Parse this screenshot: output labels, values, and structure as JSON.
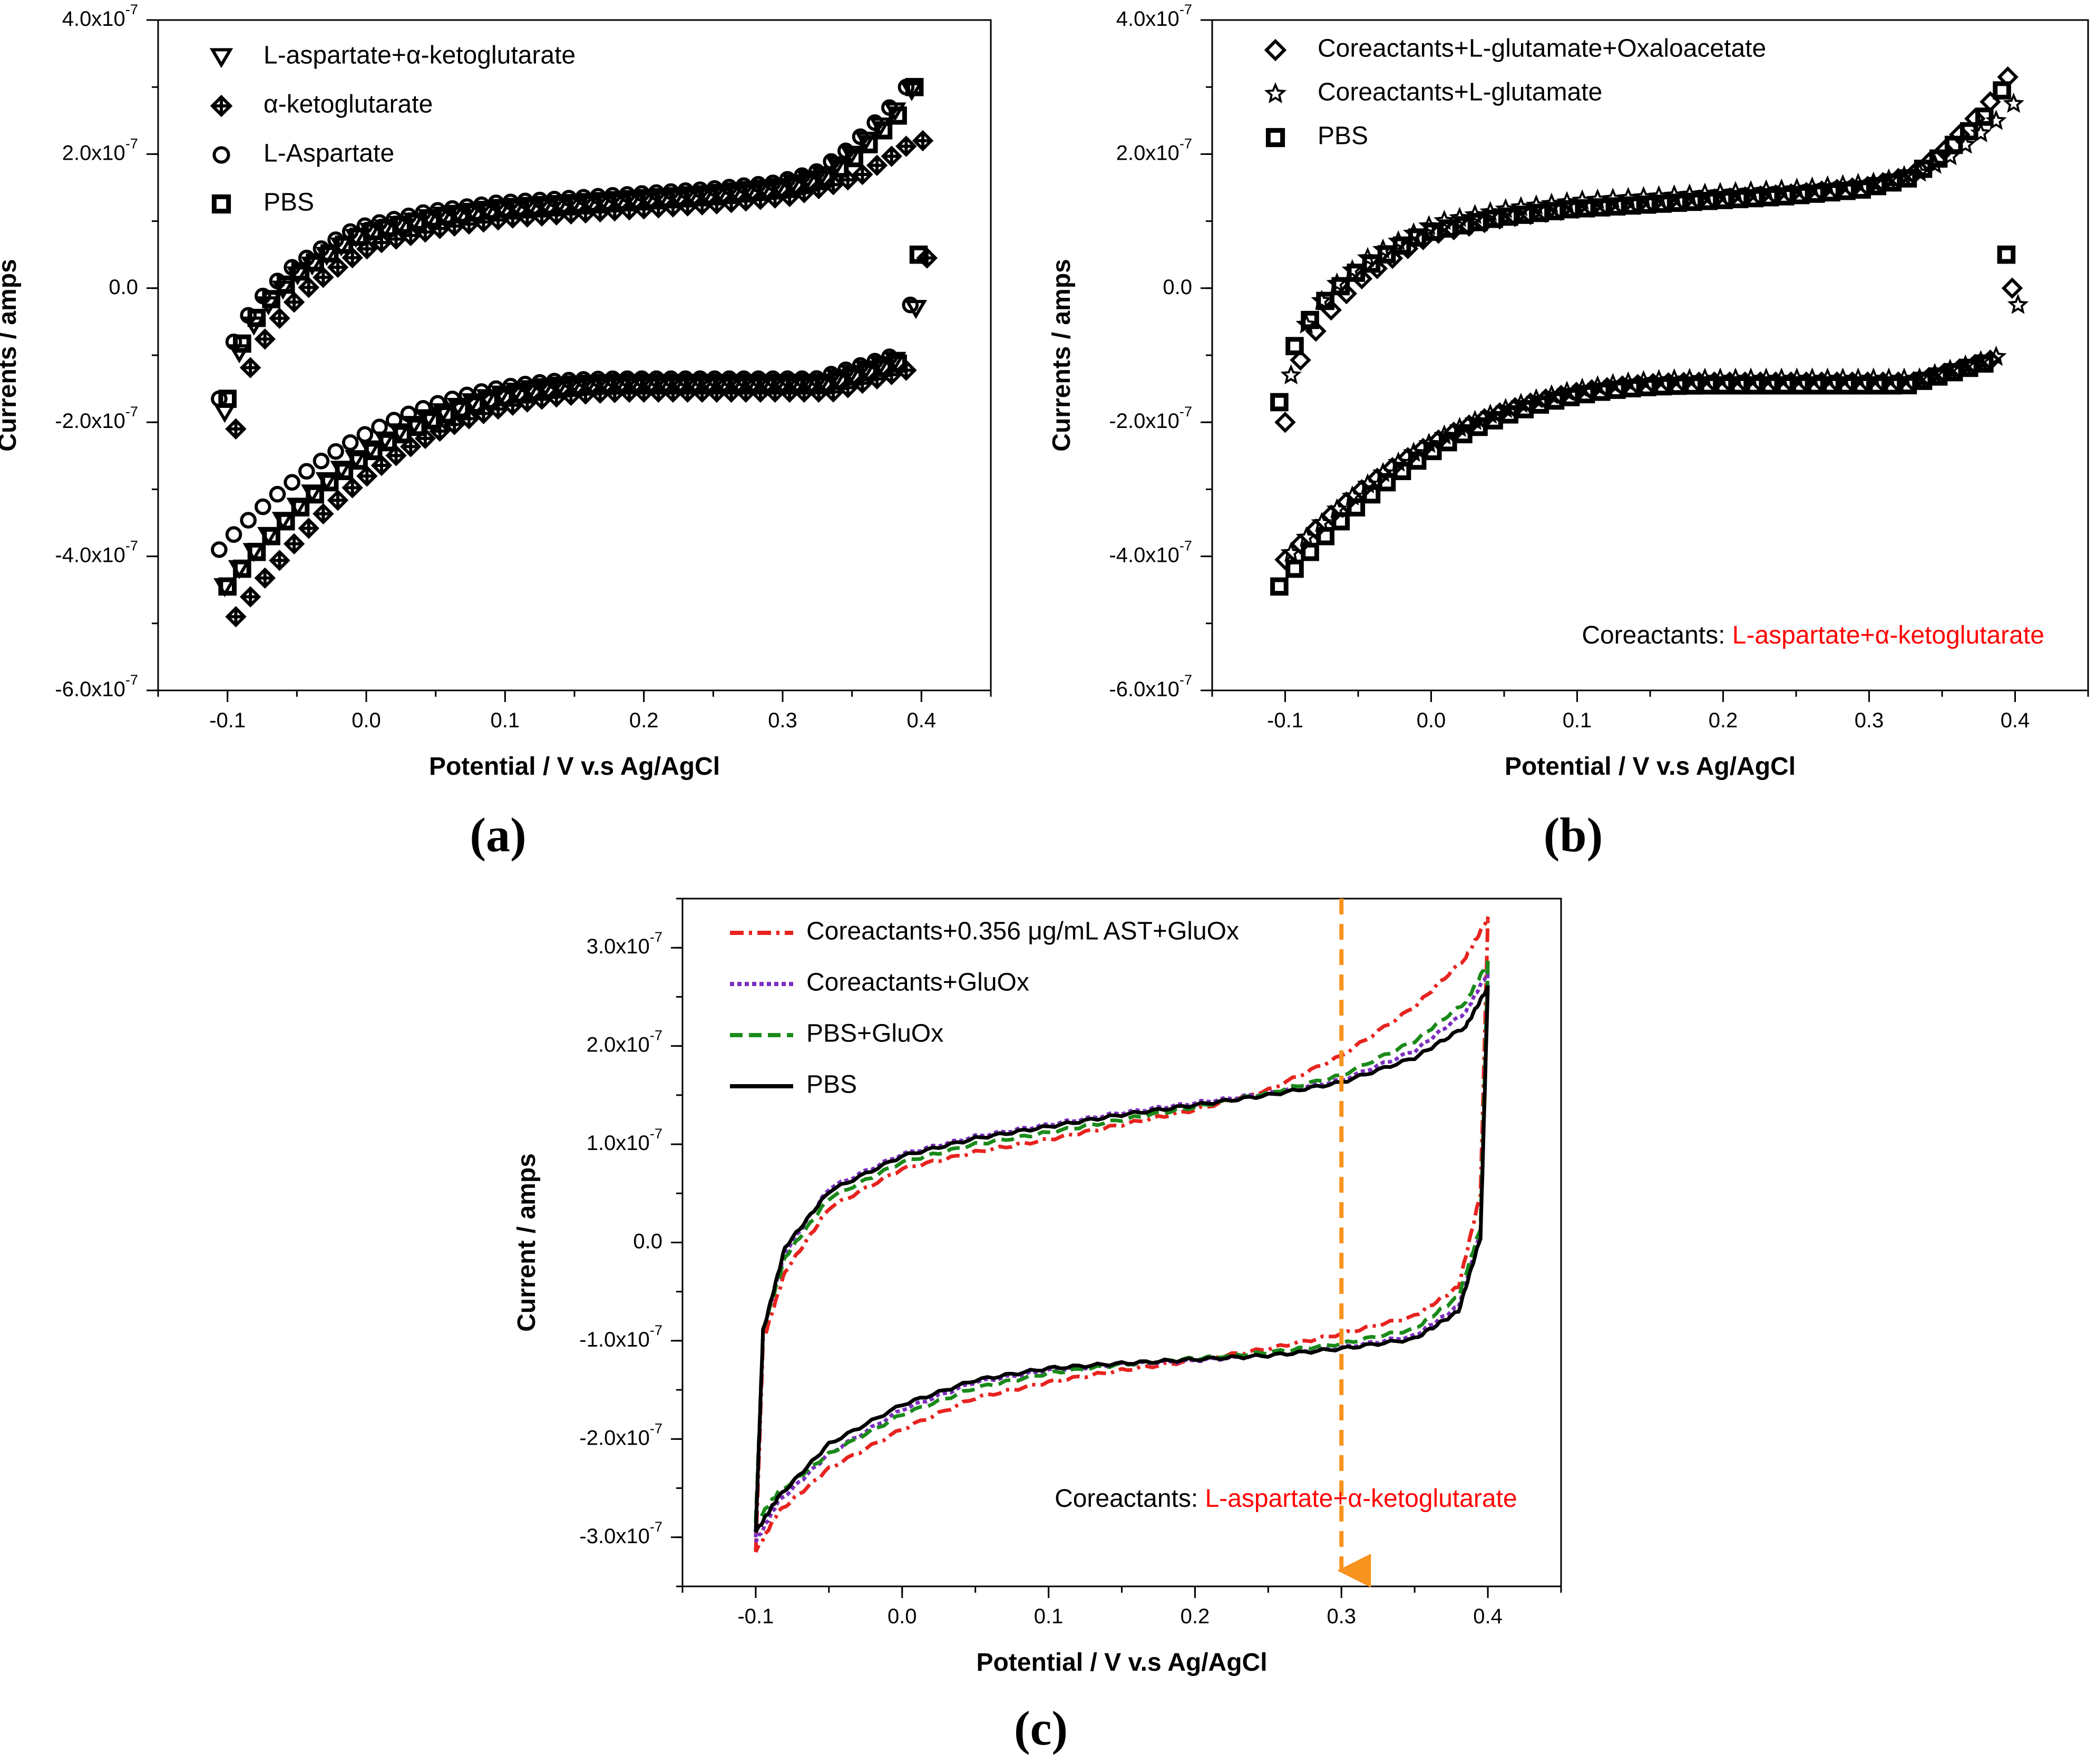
{
  "chart_data": [
    {
      "type": "scatter",
      "panel": "a",
      "title": "",
      "xlabel": "Potential / V v.s Ag/AgCl",
      "ylabel": "Currents / amps",
      "xlim": [
        -0.15,
        0.45
      ],
      "ylim": [
        -6e-07,
        4e-07
      ],
      "xticks": [
        -0.1,
        0.0,
        0.1,
        0.2,
        0.3,
        0.4
      ],
      "xtick_labels": [
        "-0.1",
        "0.0",
        "0.1",
        "0.2",
        "0.3",
        "0.4"
      ],
      "yticks": [
        4e-07,
        2e-07,
        0.0,
        -2e-07,
        -4e-07,
        -6e-07
      ],
      "ytick_labels": [
        {
          "base": "4.0x10",
          "exp": "-7"
        },
        {
          "base": "2.0x10",
          "exp": "-7"
        },
        {
          "base": "0.0",
          "exp": ""
        },
        {
          "base": "-2.0x10",
          "exp": "-7"
        },
        {
          "base": "-4.0x10",
          "exp": "-7"
        },
        {
          "base": "-6.0x10",
          "exp": "-7"
        }
      ],
      "legend_position": "top-left",
      "annotation": null,
      "series": [
        {
          "name": "L-aspartate+α-ketoglutarate",
          "marker": "triangle-down",
          "color": "#000000",
          "x_offset": -0.002,
          "y_offset": 5e-09,
          "anodic_end": 2.95e-07,
          "cathodic_end": -3e-08,
          "start_low": -4.5e-07,
          "start_high": -1.9e-07
        },
        {
          "name": "α-ketoglutarate",
          "marker": "diamond-cross",
          "color": "#000000",
          "x_offset": 0.006,
          "y_offset": -1e-08,
          "anodic_end": 2.2e-07,
          "cathodic_end": 4.5e-08,
          "start_low": -4.8e-07,
          "start_high": -2e-07
        },
        {
          "name": "L-Aspartate",
          "marker": "circle",
          "color": "#000000",
          "x_offset": -0.006,
          "y_offset": 1e-08,
          "anodic_end": 3e-07,
          "cathodic_end": -2.5e-08,
          "start_low": -4e-07,
          "start_high": -1.75e-07
        },
        {
          "name": "PBS",
          "marker": "square",
          "color": "#000000",
          "x_offset": 0.0,
          "y_offset": 0.0,
          "anodic_end": 3e-07,
          "cathodic_end": 5e-08,
          "start_low": -4.45e-07,
          "start_high": -1.65e-07
        }
      ]
    },
    {
      "type": "scatter",
      "panel": "b",
      "title": "",
      "xlabel": "Potential / V v.s Ag/AgCl",
      "ylabel": "Currents / amps",
      "xlim": [
        -0.15,
        0.45
      ],
      "ylim": [
        -6e-07,
        4e-07
      ],
      "xticks": [
        -0.1,
        0.0,
        0.1,
        0.2,
        0.3,
        0.4
      ],
      "xtick_labels": [
        "-0.1",
        "0.0",
        "0.1",
        "0.2",
        "0.3",
        "0.4"
      ],
      "yticks": [
        4e-07,
        2e-07,
        0.0,
        -2e-07,
        -4e-07,
        -6e-07
      ],
      "ytick_labels": [
        {
          "base": "4.0x10",
          "exp": "-7"
        },
        {
          "base": "2.0x10",
          "exp": "-7"
        },
        {
          "base": "0.0",
          "exp": ""
        },
        {
          "base": "-2.0x10",
          "exp": "-7"
        },
        {
          "base": "-4.0x10",
          "exp": "-7"
        },
        {
          "base": "-6.0x10",
          "exp": "-7"
        }
      ],
      "legend_position": "top-left",
      "annotation": {
        "prefix": "Coreactants: ",
        "highlight": "L-aspartate+α-ketoglutarate",
        "prefix_color": "#000000",
        "highlight_color": "#ff0000",
        "x": 0.42,
        "y": -5.2e-07,
        "anchor": "end"
      },
      "series": [
        {
          "name": "Coreactants+L-glutamate+Oxaloacetate",
          "marker": "diamond",
          "color": "#000000",
          "x_offset": 0.0,
          "y_offset": 5e-09,
          "anodic_end": 3.15e-07,
          "cathodic_end": 0.0,
          "start_low": -4.1e-07,
          "start_high": -2.05e-07
        },
        {
          "name": "Coreactants+L-glutamate",
          "marker": "star",
          "color": "#000000",
          "x_offset": 0.004,
          "y_offset": 1e-08,
          "anodic_end": 2.75e-07,
          "cathodic_end": -2.5e-08,
          "start_low": -4.05e-07,
          "start_high": -1.4e-07
        },
        {
          "name": "PBS",
          "marker": "square",
          "color": "#000000",
          "x_offset": -0.004,
          "y_offset": 0.0,
          "anodic_end": 2.95e-07,
          "cathodic_end": 5e-08,
          "start_low": -4.45e-07,
          "start_high": -1.7e-07
        }
      ]
    },
    {
      "type": "line",
      "panel": "c",
      "title": "",
      "xlabel": "Potential / V v.s Ag/AgCl",
      "ylabel": "Current / amps",
      "xlim": [
        -0.15,
        0.45
      ],
      "ylim": [
        -3.5e-07,
        3.5e-07
      ],
      "xticks": [
        -0.1,
        0.0,
        0.1,
        0.2,
        0.3,
        0.4
      ],
      "xtick_labels": [
        "-0.1",
        "0.0",
        "0.1",
        "0.2",
        "0.3",
        "0.4"
      ],
      "yticks": [
        3e-07,
        2e-07,
        1e-07,
        0.0,
        -1e-07,
        -2e-07,
        -3e-07
      ],
      "ytick_labels": [
        {
          "base": "3.0x10",
          "exp": "-7"
        },
        {
          "base": "2.0x10",
          "exp": "-7"
        },
        {
          "base": "1.0x10",
          "exp": "-7"
        },
        {
          "base": "0.0",
          "exp": ""
        },
        {
          "base": "-1.0x10",
          "exp": "-7"
        },
        {
          "base": "-2.0x10",
          "exp": "-7"
        },
        {
          "base": "-3.0x10",
          "exp": "-7"
        }
      ],
      "legend_position": "top-left",
      "annotation": {
        "prefix": "Coreactants: ",
        "highlight": "L-aspartate+α-ketoglutarate",
        "prefix_color": "#000000",
        "highlight_color": "#ff0000",
        "x": 0.42,
        "y": -2.62e-07,
        "anchor": "end"
      },
      "marker_line": {
        "x": 0.3,
        "y_start": 3.5e-07,
        "y_end": -3.5e-07,
        "color": "#f7931e",
        "style": "dashed-arrow-down"
      },
      "series": [
        {
          "name": "Coreactants+0.356 μg/mL AST+GluOx",
          "color": "#e8231f",
          "dash": "dashdot",
          "upper": [
            [
              -0.1,
              -3.15e-07
            ],
            [
              -0.095,
              -1e-07
            ],
            [
              -0.08,
              -3e-08
            ],
            [
              -0.05,
              3.5e-08
            ],
            [
              0.0,
              7.5e-08
            ],
            [
              0.05,
              9.2e-08
            ],
            [
              0.1,
              1.05e-07
            ],
            [
              0.15,
              1.2e-07
            ],
            [
              0.2,
              1.35e-07
            ],
            [
              0.25,
              1.55e-07
            ],
            [
              0.3,
              1.9e-07
            ],
            [
              0.35,
              2.4e-07
            ],
            [
              0.385,
              2.9e-07
            ],
            [
              0.4,
              3.3e-07
            ]
          ],
          "lower": [
            [
              0.4,
              3.3e-07
            ],
            [
              0.395,
              5e-08
            ],
            [
              0.38,
              -4.5e-08
            ],
            [
              0.35,
              -7.5e-08
            ],
            [
              0.3,
              -9.3e-08
            ],
            [
              0.25,
              -1.08e-07
            ],
            [
              0.2,
              -1.2e-07
            ],
            [
              0.15,
              -1.3e-07
            ],
            [
              0.1,
              -1.42e-07
            ],
            [
              0.05,
              -1.58e-07
            ],
            [
              0.0,
              -1.9e-07
            ],
            [
              -0.05,
              -2.3e-07
            ],
            [
              -0.085,
              -2.75e-07
            ],
            [
              -0.1,
              -3.15e-07
            ]
          ]
        },
        {
          "name": "Coreactants+GluOx",
          "color": "#7b2fbe",
          "dash": "dotted",
          "upper": [
            [
              -0.1,
              -3e-07
            ],
            [
              -0.095,
              -9e-08
            ],
            [
              -0.08,
              -1e-08
            ],
            [
              -0.05,
              5.5e-08
            ],
            [
              0.0,
              9e-08
            ],
            [
              0.05,
              1.08e-07
            ],
            [
              0.1,
              1.2e-07
            ],
            [
              0.15,
              1.32e-07
            ],
            [
              0.2,
              1.42e-07
            ],
            [
              0.25,
              1.52e-07
            ],
            [
              0.3,
              1.65e-07
            ],
            [
              0.35,
              1.95e-07
            ],
            [
              0.385,
              2.35e-07
            ],
            [
              0.4,
              2.75e-07
            ]
          ],
          "lower": [
            [
              0.4,
              2.75e-07
            ],
            [
              0.395,
              1e-08
            ],
            [
              0.38,
              -6.5e-08
            ],
            [
              0.35,
              -9.5e-08
            ],
            [
              0.3,
              -1.07e-07
            ],
            [
              0.25,
              -1.15e-07
            ],
            [
              0.2,
              -1.2e-07
            ],
            [
              0.15,
              -1.24e-07
            ],
            [
              0.1,
              -1.3e-07
            ],
            [
              0.05,
              -1.42e-07
            ],
            [
              0.0,
              -1.7e-07
            ],
            [
              -0.05,
              -2.15e-07
            ],
            [
              -0.085,
              -2.65e-07
            ],
            [
              -0.1,
              -3.05e-07
            ]
          ]
        },
        {
          "name": "PBS+GluOx",
          "color": "#1a8a1a",
          "dash": "dashed",
          "upper": [
            [
              -0.1,
              -2.85e-07
            ],
            [
              -0.095,
              -9e-08
            ],
            [
              -0.08,
              -1.5e-08
            ],
            [
              -0.05,
              4.5e-08
            ],
            [
              0.0,
              8.2e-08
            ],
            [
              0.05,
              1e-07
            ],
            [
              0.1,
              1.12e-07
            ],
            [
              0.15,
              1.25e-07
            ],
            [
              0.2,
              1.38e-07
            ],
            [
              0.25,
              1.52e-07
            ],
            [
              0.3,
              1.7e-07
            ],
            [
              0.35,
              2.05e-07
            ],
            [
              0.385,
              2.45e-07
            ],
            [
              0.4,
              2.85e-07
            ]
          ],
          "lower": [
            [
              0.4,
              2.85e-07
            ],
            [
              0.395,
              1.5e-08
            ],
            [
              0.38,
              -5.5e-08
            ],
            [
              0.35,
              -8.8e-08
            ],
            [
              0.3,
              -1.03e-07
            ],
            [
              0.25,
              -1.12e-07
            ],
            [
              0.2,
              -1.18e-07
            ],
            [
              0.15,
              -1.24e-07
            ],
            [
              0.1,
              -1.33e-07
            ],
            [
              0.05,
              -1.48e-07
            ],
            [
              0.0,
              -1.75e-07
            ],
            [
              -0.05,
              -2.15e-07
            ],
            [
              -0.085,
              -2.55e-07
            ],
            [
              -0.1,
              -2.85e-07
            ]
          ]
        },
        {
          "name": "PBS",
          "color": "#000000",
          "dash": "solid",
          "upper": [
            [
              -0.1,
              -2.95e-07
            ],
            [
              -0.095,
              -9e-08
            ],
            [
              -0.08,
              -5e-09
            ],
            [
              -0.05,
              5.2e-08
            ],
            [
              0.0,
              8.8e-08
            ],
            [
              0.05,
              1.06e-07
            ],
            [
              0.1,
              1.18e-07
            ],
            [
              0.15,
              1.3e-07
            ],
            [
              0.2,
              1.4e-07
            ],
            [
              0.25,
              1.5e-07
            ],
            [
              0.3,
              1.63e-07
            ],
            [
              0.35,
              1.88e-07
            ],
            [
              0.385,
              2.2e-07
            ],
            [
              0.4,
              2.6e-07
            ]
          ],
          "lower": [
            [
              0.4,
              2.6e-07
            ],
            [
              0.395,
              5e-09
            ],
            [
              0.38,
              -7e-08
            ],
            [
              0.35,
              -9.8e-08
            ],
            [
              0.3,
              -1.08e-07
            ],
            [
              0.25,
              -1.15e-07
            ],
            [
              0.2,
              -1.19e-07
            ],
            [
              0.15,
              -1.23e-07
            ],
            [
              0.1,
              -1.28e-07
            ],
            [
              0.05,
              -1.4e-07
            ],
            [
              0.0,
              -1.65e-07
            ],
            [
              -0.05,
              -2.05e-07
            ],
            [
              -0.085,
              -2.6e-07
            ],
            [
              -0.1,
              -2.95e-07
            ]
          ]
        }
      ]
    }
  ],
  "panel_labels": [
    "a",
    "b",
    "c"
  ]
}
